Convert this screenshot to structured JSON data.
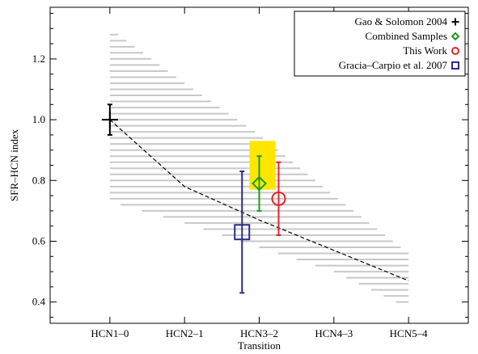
{
  "chart_data": {
    "type": "scatter",
    "title": "",
    "xlabel": "Transition",
    "ylabel": "SFR–HCN index",
    "categories": [
      "HCN1–0",
      "HCN2–1",
      "HCN3–2",
      "HCN4–3",
      "HCN5–4"
    ],
    "xlim": [
      0.2,
      5.8
    ],
    "ylim": [
      0.33,
      1.37
    ],
    "yticks": [
      "0.4",
      "0.6",
      "0.8",
      "1.0",
      "1.2"
    ],
    "grid": false,
    "legend_position": "top-right",
    "model_band": {
      "upper": [
        [
          1,
          1.3
        ],
        [
          2,
          1.12
        ],
        [
          3,
          0.95
        ],
        [
          4,
          0.75
        ],
        [
          5,
          0.56
        ]
      ],
      "lower": [
        [
          1,
          0.73
        ],
        [
          2,
          0.66
        ],
        [
          3,
          0.58
        ],
        [
          4,
          0.5
        ],
        [
          5,
          0.38
        ]
      ],
      "color": "#c8c8c8"
    },
    "model_curve": [
      [
        1,
        1.0
      ],
      [
        2,
        0.78
      ],
      [
        3,
        0.67
      ],
      [
        4,
        0.57
      ],
      [
        5,
        0.47
      ]
    ],
    "highlight_box": {
      "x": [
        2.87,
        3.22
      ],
      "y": [
        0.77,
        0.93
      ],
      "color": "#ffe600"
    },
    "series": [
      {
        "name": "Gao & Solomon 2004",
        "marker": "plus",
        "color": "#000000",
        "x": 1.0,
        "y": 1.0,
        "yerr": [
          0.95,
          1.05
        ]
      },
      {
        "name": "Combined Samples",
        "marker": "diamond",
        "color": "#1a9c1a",
        "x": 3.0,
        "y": 0.79,
        "yerr": [
          0.7,
          0.88
        ]
      },
      {
        "name": "This Work",
        "marker": "circle",
        "color": "#e3242b",
        "x": 3.26,
        "y": 0.74,
        "yerr": [
          0.62,
          0.86
        ]
      },
      {
        "name": "Gracia–Carpio et al. 2007",
        "marker": "square",
        "color": "#2b2b8c",
        "x": 2.77,
        "y": 0.63,
        "yerr": [
          0.43,
          0.83
        ]
      }
    ]
  }
}
